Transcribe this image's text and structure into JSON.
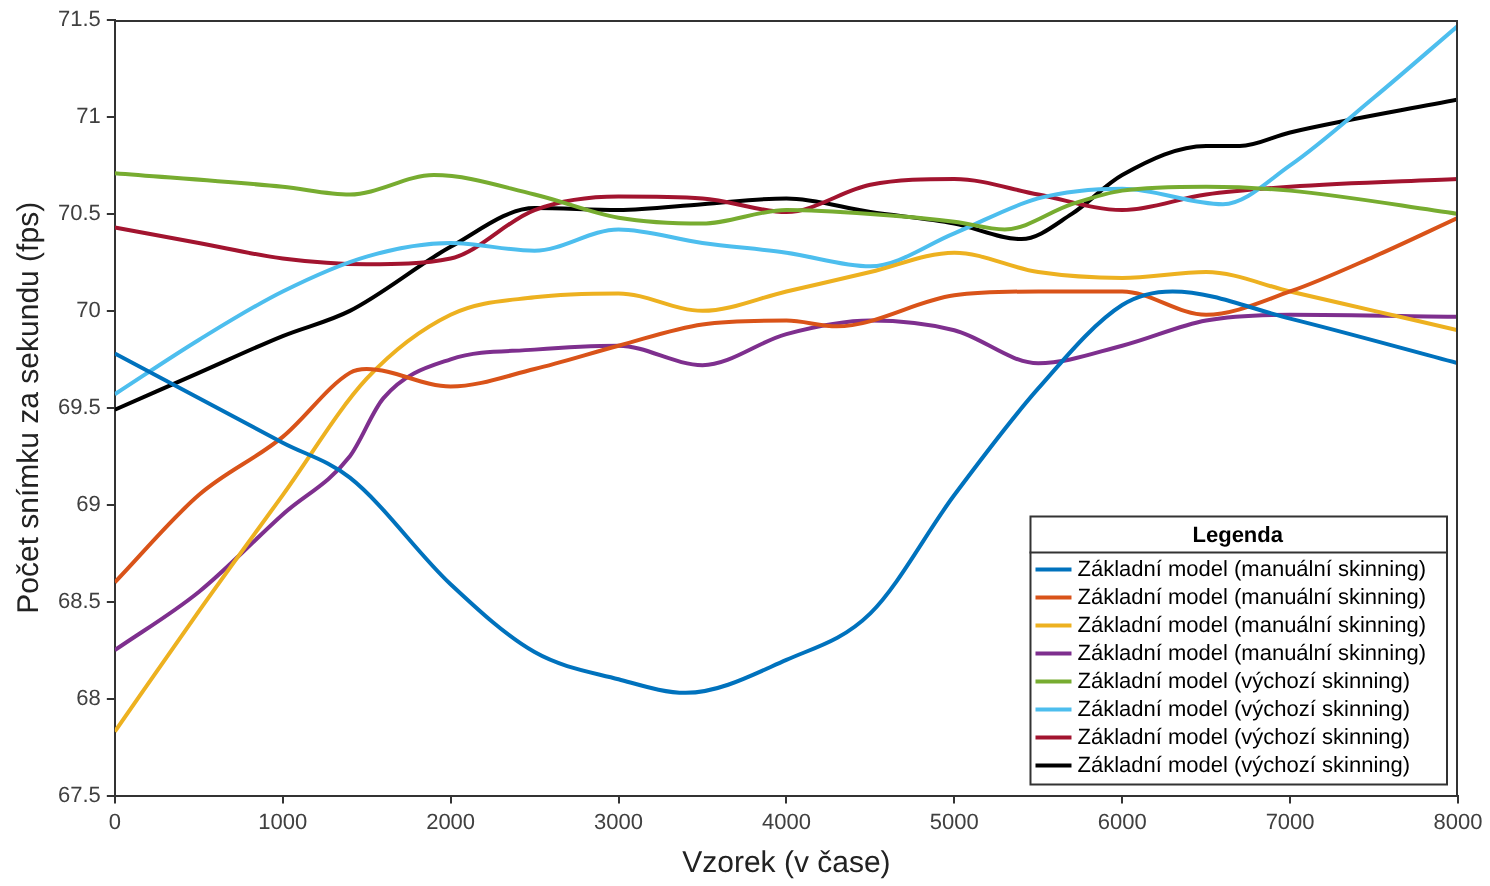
{
  "chart_data": {
    "type": "line",
    "xlabel": "Vzorek (v čase)",
    "ylabel": "Počet snímku za sekundu (fps)",
    "legend_title": "Legenda",
    "legend": "bottom right",
    "grid": false,
    "marker": "none",
    "line_style": "solid",
    "xlim": [
      0,
      8000
    ],
    "xticks": [
      0,
      1000,
      2000,
      3000,
      4000,
      5000,
      6000,
      7000,
      8000
    ],
    "ylim": [
      67.5,
      71.5
    ],
    "yticks": [
      67.5,
      68,
      68.5,
      69,
      69.5,
      70,
      70.5,
      71,
      71.5
    ],
    "series": [
      {
        "name": "Základní model (manuální skinning)",
        "color": "#0072bd",
        "x": [
          0,
          1000,
          1400,
          2000,
          2500,
          3000,
          3400,
          4000,
          4500,
          5000,
          5500,
          6000,
          6300,
          7000,
          8000
        ],
        "values": [
          69.78,
          69.32,
          69.14,
          68.59,
          68.24,
          68.1,
          68.03,
          68.2,
          68.44,
          69.05,
          69.6,
          70.03,
          70.1,
          69.96,
          69.73
        ]
      },
      {
        "name": "Základní model (manuální skinning)",
        "color": "#d95319",
        "x": [
          0,
          500,
          1000,
          1400,
          1500,
          2000,
          2500,
          3000,
          3500,
          4000,
          4300,
          5000,
          5500,
          6000,
          6500,
          7000,
          7500,
          8000
        ],
        "values": [
          68.6,
          69.05,
          69.35,
          69.68,
          69.7,
          69.61,
          69.7,
          69.82,
          69.93,
          69.95,
          69.92,
          70.08,
          70.1,
          70.1,
          69.98,
          70.1,
          70.28,
          70.48
        ]
      },
      {
        "name": "Základní model (manuální skinning)",
        "color": "#edb120",
        "x": [
          0,
          500,
          1000,
          1500,
          2000,
          2500,
          3000,
          3500,
          4000,
          4500,
          5000,
          5500,
          6000,
          6500,
          7000,
          7500,
          8000
        ],
        "values": [
          67.83,
          68.45,
          69.05,
          69.65,
          69.98,
          70.07,
          70.09,
          70.0,
          70.1,
          70.2,
          70.3,
          70.2,
          70.17,
          70.2,
          70.1,
          70.0,
          69.9
        ]
      },
      {
        "name": "Základní model (manuální skinning)",
        "color": "#7e2f8e",
        "x": [
          0,
          500,
          1000,
          1400,
          1600,
          2000,
          2500,
          3000,
          3500,
          4000,
          4500,
          5000,
          5500,
          6000,
          6500,
          7000,
          8000
        ],
        "values": [
          68.25,
          68.55,
          68.95,
          69.25,
          69.55,
          69.75,
          69.8,
          69.82,
          69.72,
          69.88,
          69.95,
          69.9,
          69.73,
          69.82,
          69.95,
          69.98,
          69.97
        ]
      },
      {
        "name": "Základní model (výchozí skinning)",
        "color": "#77ac30",
        "x": [
          0,
          1000,
          1400,
          1900,
          2500,
          3000,
          3500,
          4000,
          4500,
          5000,
          5300,
          5700,
          6000,
          6500,
          7000,
          8000
        ],
        "values": [
          70.71,
          70.64,
          70.6,
          70.7,
          70.6,
          70.48,
          70.45,
          70.52,
          70.5,
          70.46,
          70.42,
          70.55,
          70.62,
          70.64,
          70.62,
          70.5
        ]
      },
      {
        "name": "Základní model (výchozí skinning)",
        "color": "#4dbeee",
        "x": [
          0,
          500,
          1000,
          1500,
          2000,
          2500,
          3000,
          3500,
          4000,
          4500,
          5000,
          5500,
          6000,
          6600,
          7000,
          7500,
          8000
        ],
        "values": [
          69.57,
          69.85,
          70.1,
          70.28,
          70.35,
          70.31,
          70.42,
          70.35,
          70.3,
          70.23,
          70.4,
          70.58,
          70.63,
          70.55,
          70.75,
          71.1,
          71.47
        ]
      },
      {
        "name": "Základní model (výchozí skinning)",
        "color": "#a2142f",
        "x": [
          0,
          500,
          1000,
          1500,
          2000,
          2500,
          3000,
          3500,
          4000,
          4500,
          5000,
          5500,
          6000,
          6500,
          7000,
          8000
        ],
        "values": [
          70.43,
          70.35,
          70.27,
          70.24,
          70.27,
          70.52,
          70.59,
          70.58,
          70.51,
          70.65,
          70.68,
          70.6,
          70.52,
          70.6,
          70.64,
          70.68
        ]
      },
      {
        "name": "Základní model (výchozí skinning)",
        "color": "#000000",
        "x": [
          0,
          500,
          1000,
          1400,
          2000,
          2500,
          3000,
          3500,
          4000,
          4500,
          5000,
          5400,
          5700,
          6000,
          6500,
          6700,
          7000,
          8000
        ],
        "values": [
          69.49,
          69.68,
          69.87,
          70.0,
          70.33,
          70.53,
          70.52,
          70.55,
          70.58,
          70.51,
          70.45,
          70.37,
          70.5,
          70.7,
          70.85,
          70.85,
          70.92,
          71.09
        ]
      }
    ]
  }
}
